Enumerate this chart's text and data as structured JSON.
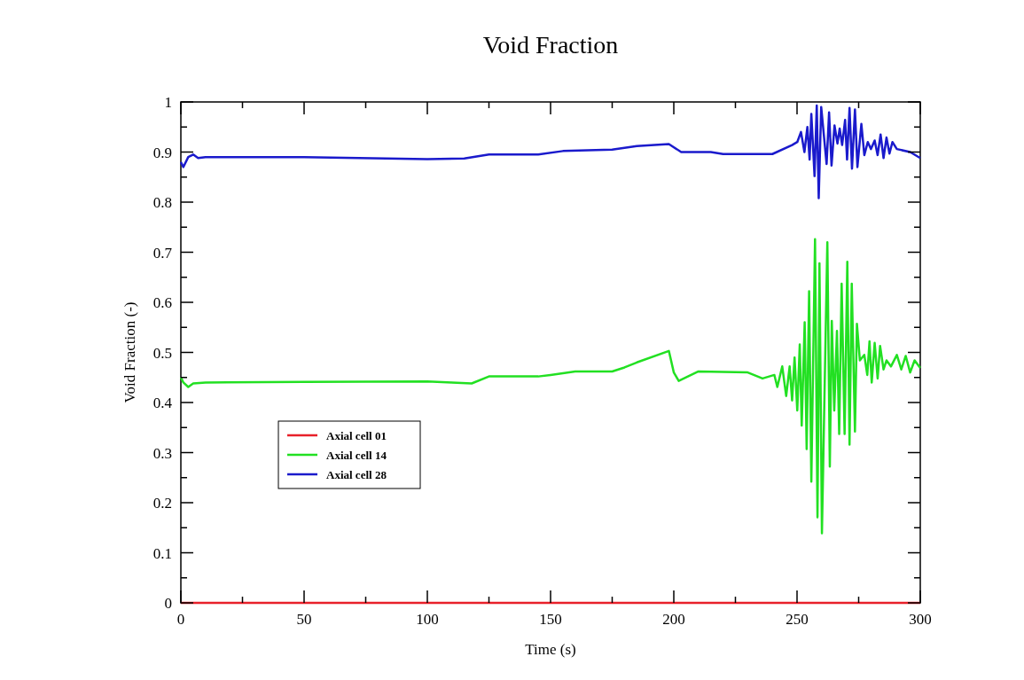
{
  "chart_data": {
    "type": "line",
    "title": "Void Fraction",
    "xlabel": "Time (s)",
    "ylabel": "Void Fraction (-)",
    "xlim": [
      0,
      300
    ],
    "ylim": [
      0,
      1
    ],
    "xticks": [
      0,
      {
        "value": 25,
        "label": null
      },
      50,
      {
        "value": 75,
        "label": null
      },
      100,
      {
        "value": 125,
        "label": null
      },
      150,
      {
        "value": 175,
        "label": null
      },
      200,
      {
        "value": 225,
        "label": null
      },
      250,
      {
        "value": 275,
        "label": null
      },
      300
    ],
    "yticks": [
      0,
      {
        "value": 0.05,
        "label": null
      },
      0.1,
      {
        "value": 0.15,
        "label": null
      },
      0.2,
      {
        "value": 0.25,
        "label": null
      },
      0.3,
      {
        "value": 0.35,
        "label": null
      },
      0.4,
      {
        "value": 0.45,
        "label": null
      },
      0.5,
      {
        "value": 0.55,
        "label": null
      },
      0.6,
      {
        "value": 0.65,
        "label": null
      },
      0.7,
      {
        "value": 0.75,
        "label": null
      },
      0.8,
      {
        "value": 0.85,
        "label": null
      },
      0.9,
      {
        "value": 0.95,
        "label": null
      },
      1
    ],
    "legend": "bottom left",
    "marker": "none",
    "line_style": "solid",
    "series": [
      {
        "name": "Axial cell 01",
        "color": "#e8202a",
        "x": [
          0,
          300
        ],
        "values": [
          0,
          0
        ]
      },
      {
        "name": "Axial cell 14",
        "color": "#22e022",
        "x": [
          0,
          1,
          3,
          5,
          10,
          50,
          100,
          110,
          118,
          125,
          145,
          150,
          160,
          175,
          180,
          185,
          198,
          200,
          202,
          210,
          230,
          236,
          240.8,
          242,
          244,
          245.6,
          247,
          248,
          249,
          250.1,
          251.1,
          251.9,
          253.1,
          253.9,
          254.9,
          255.8,
          257.3,
          258.3,
          259.1,
          260.1,
          262.3,
          263.3,
          264.1,
          265.1,
          266.2,
          267.1,
          268.1,
          269.3,
          270.4,
          271.3,
          272.2,
          273.5,
          274.3,
          275.5,
          277.3,
          278.5,
          279.4,
          280.3,
          281.5,
          282.7,
          283.7,
          285.1,
          286.3,
          288.1,
          290.5,
          292.3,
          294.1,
          295.9,
          297.7,
          300
        ],
        "values": [
          0.45,
          0.44,
          0.431,
          0.438,
          0.44,
          0.441,
          0.442,
          0.44,
          0.438,
          0.452,
          0.452,
          0.455,
          0.462,
          0.462,
          0.47,
          0.48,
          0.503,
          0.46,
          0.443,
          0.462,
          0.46,
          0.448,
          0.455,
          0.431,
          0.472,
          0.413,
          0.472,
          0.404,
          0.49,
          0.384,
          0.516,
          0.354,
          0.56,
          0.307,
          0.622,
          0.242,
          0.726,
          0.171,
          0.678,
          0.139,
          0.72,
          0.272,
          0.563,
          0.384,
          0.543,
          0.337,
          0.637,
          0.337,
          0.681,
          0.316,
          0.637,
          0.342,
          0.557,
          0.484,
          0.495,
          0.455,
          0.522,
          0.44,
          0.519,
          0.448,
          0.513,
          0.466,
          0.484,
          0.472,
          0.495,
          0.466,
          0.493,
          0.46,
          0.484,
          0.469
        ]
      },
      {
        "name": "Axial cell 28",
        "color": "#1a1acc",
        "x": [
          0,
          1,
          3,
          5,
          7,
          10,
          50,
          100,
          115,
          125,
          145,
          155,
          175,
          185,
          198,
          203,
          215,
          220,
          240,
          248,
          250.1,
          251.6,
          253,
          254.2,
          255.1,
          255.8,
          257.1,
          258,
          258.8,
          259.8,
          262,
          263,
          264,
          265.2,
          266.4,
          267.3,
          268.3,
          269.5,
          270.3,
          271.3,
          272.3,
          273.5,
          274.5,
          276.1,
          277.3,
          278.7,
          280,
          281.5,
          282.7,
          283.9,
          285.1,
          286.3,
          287.5,
          288.7,
          290.5,
          295.9,
          300
        ],
        "values": [
          0.88,
          0.87,
          0.89,
          0.895,
          0.888,
          0.89,
          0.89,
          0.886,
          0.887,
          0.895,
          0.895,
          0.902,
          0.905,
          0.912,
          0.916,
          0.9,
          0.9,
          0.896,
          0.896,
          0.914,
          0.92,
          0.94,
          0.9,
          0.95,
          0.885,
          0.976,
          0.852,
          0.993,
          0.808,
          0.99,
          0.876,
          0.979,
          0.873,
          0.953,
          0.917,
          0.947,
          0.914,
          0.964,
          0.885,
          0.988,
          0.867,
          0.985,
          0.87,
          0.956,
          0.894,
          0.92,
          0.906,
          0.923,
          0.894,
          0.935,
          0.888,
          0.929,
          0.897,
          0.92,
          0.906,
          0.9,
          0.888
        ]
      }
    ]
  }
}
